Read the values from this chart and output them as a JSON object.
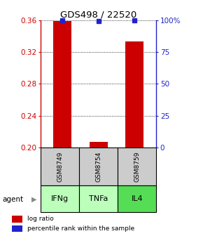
{
  "title": "GDS498 / 22520",
  "samples": [
    "GSM8749",
    "GSM8754",
    "GSM8759"
  ],
  "agents": [
    "IFNg",
    "TNFa",
    "IL4"
  ],
  "log_ratios": [
    0.359,
    0.207,
    0.333
  ],
  "percentile_ranks": [
    99.5,
    99.0,
    100.0
  ],
  "bar_color": "#cc0000",
  "marker_color": "#2222cc",
  "ylim_left": [
    0.2,
    0.36
  ],
  "ylim_right": [
    0,
    100
  ],
  "yticks_left": [
    0.2,
    0.24,
    0.28,
    0.32,
    0.36
  ],
  "yticks_right": [
    0,
    25,
    50,
    75,
    100
  ],
  "ytick_labels_right": [
    "0",
    "25",
    "50",
    "75",
    "100%"
  ],
  "sample_box_color": "#cccccc",
  "agent_colors": [
    "#bbffbb",
    "#bbffbb",
    "#55dd55"
  ],
  "legend_bar_label": "log ratio",
  "legend_marker_label": "percentile rank within the sample",
  "agent_label": "agent",
  "bar_width": 0.5,
  "figsize": [
    2.9,
    3.36
  ],
  "dpi": 100
}
